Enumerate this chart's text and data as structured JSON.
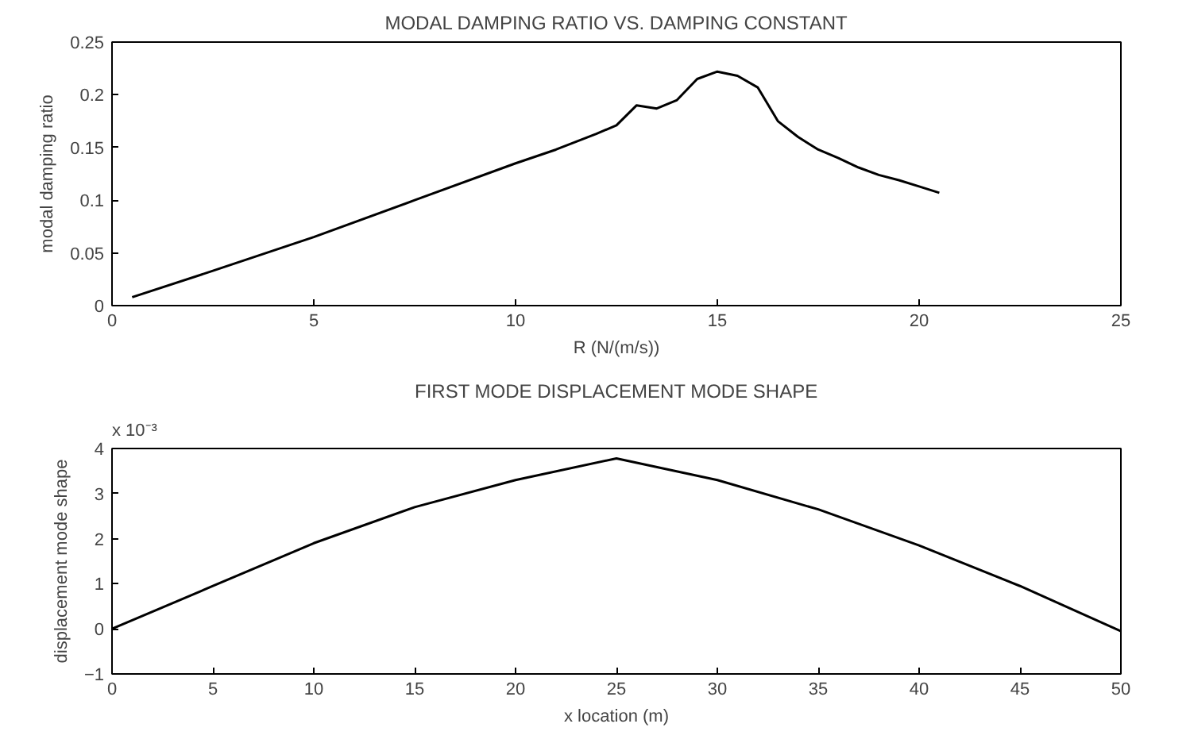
{
  "chart_data": [
    {
      "type": "line",
      "title": "MODAL DAMPING RATIO VS. DAMPING CONSTANT",
      "xlabel": "R (N/(m/s))",
      "ylabel": "modal damping ratio",
      "x": [
        0.5,
        2.5,
        5,
        7.5,
        10,
        11,
        12,
        12.5,
        13,
        13.5,
        14,
        14.5,
        15,
        15.5,
        16,
        16.5,
        17,
        17.5,
        18,
        18.5,
        19,
        19.5,
        20,
        20.5
      ],
      "series": [
        {
          "color": "#000000",
          "values": [
            0.008,
            0.033,
            0.065,
            0.1,
            0.135,
            0.148,
            0.163,
            0.171,
            0.19,
            0.187,
            0.195,
            0.215,
            0.222,
            0.218,
            0.207,
            0.175,
            0.16,
            0.148,
            0.14,
            0.131,
            0.124,
            0.119,
            0.113,
            0.107
          ]
        }
      ],
      "xlim": [
        0,
        25
      ],
      "xticks": [
        0,
        5,
        10,
        15,
        20,
        25
      ],
      "ylim": [
        0,
        0.25
      ],
      "yticks": [
        0,
        0.05,
        0.1,
        0.15,
        0.2,
        0.25
      ],
      "grid": false
    },
    {
      "type": "line",
      "title": "FIRST MODE DISPLACEMENT MODE SHAPE",
      "xlabel": "x location (m)",
      "ylabel": "displacement mode shape",
      "annotations": [
        "x 10⁻³"
      ],
      "x": [
        0,
        5,
        10,
        15,
        20,
        25,
        30,
        35,
        40,
        45,
        50
      ],
      "series": [
        {
          "color": "#000000",
          "values": [
            0,
            0.95,
            1.9,
            2.7,
            3.3,
            3.78,
            3.3,
            2.65,
            1.85,
            0.95,
            -0.05
          ]
        }
      ],
      "xlim": [
        0,
        50
      ],
      "xticks": [
        0,
        5,
        10,
        15,
        20,
        25,
        30,
        35,
        40,
        45,
        50
      ],
      "ylim": [
        -1,
        4
      ],
      "yticks": [
        -1,
        0,
        1,
        2,
        3,
        4
      ],
      "grid": false
    }
  ]
}
